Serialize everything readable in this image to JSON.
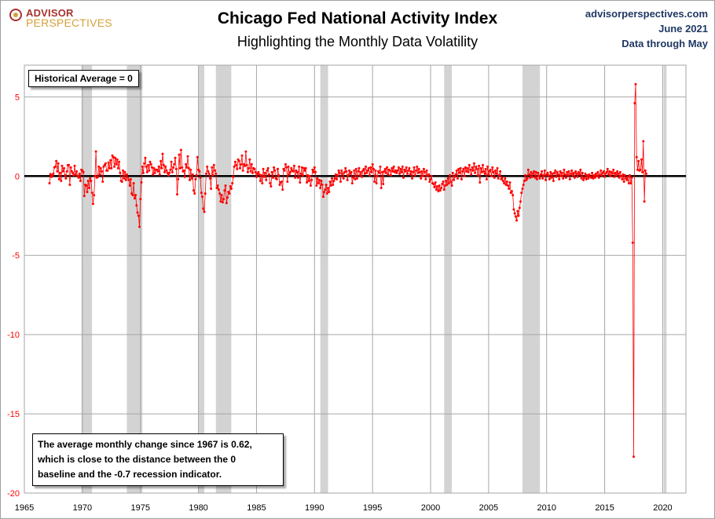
{
  "header": {
    "title": "Chicago Fed National Activity Index",
    "subtitle": "Highlighting the Monthly Data Volatility",
    "logo_line1": "ADVISOR",
    "logo_line2": "PERSPECTIVES",
    "source_site": "advisorperspectives.com",
    "source_date": "June 2021",
    "source_through": "Data through May"
  },
  "annotations": {
    "historical_average": "Historical Average = 0",
    "note_lines": [
      "The average monthly change since 1967  is 0.62,",
      "which is close to the distance between the 0",
      "baseline and the -0.7 recession indicator."
    ]
  },
  "colors": {
    "series": "#ff0000",
    "recession": "#d3d3d3",
    "grid": "#a6a6a6",
    "zero_line": "#000000",
    "y_tick_labels": "#ff0000",
    "x_tick_labels": "#000000"
  },
  "chart_data": {
    "type": "line",
    "title": "Chicago Fed National Activity Index",
    "subtitle": "Highlighting the Monthly Data Volatility",
    "xlabel": "",
    "ylabel": "",
    "xlim": [
      1965,
      2022
    ],
    "ylim": [
      -20,
      7
    ],
    "x_ticks": [
      1965,
      1970,
      1975,
      1980,
      1985,
      1990,
      1995,
      2000,
      2005,
      2010,
      2015,
      2020
    ],
    "y_ticks": [
      -20,
      -15,
      -10,
      -5,
      0,
      5
    ],
    "grid": true,
    "baseline": 0,
    "recessions": [
      [
        1969.92,
        1970.83
      ],
      [
        1973.83,
        1975.17
      ],
      [
        1980.0,
        1980.5
      ],
      [
        1981.5,
        1982.83
      ],
      [
        1990.5,
        1991.17
      ],
      [
        2001.17,
        2001.83
      ],
      [
        2007.92,
        2009.42
      ],
      [
        2020.08,
        2020.33
      ]
    ],
    "series": [
      {
        "monthly_from": "1967-03",
        "values": [
          -0.45,
          0.13,
          -0.05,
          0.05,
          0.15,
          0.55,
          0.6,
          0.95,
          0.3,
          0.8,
          -0.2,
          0.2,
          -0.3,
          0.65,
          0.3,
          0.5,
          0.05,
          -0.15,
          0.3,
          0.7,
          0.7,
          -0.55,
          0.55,
          0.3,
          0.2,
          0.05,
          0.65,
          0.1,
          0.3,
          0.0,
          -0.1,
          0.15,
          -0.3,
          0.4,
          0.35,
          0.25,
          -1.25,
          -0.55,
          -0.6,
          -1.0,
          -0.3,
          -0.75,
          -0.15,
          -0.3,
          -1.05,
          -1.75,
          -1.2,
          0.0,
          1.55,
          -0.1,
          -0.05,
          0.6,
          0.1,
          0.5,
          0.3,
          -0.35,
          0.6,
          0.7,
          0.8,
          0.35,
          0.35,
          0.85,
          0.5,
          1.0,
          0.5,
          1.3,
          1.2,
          0.6,
          1.15,
          0.75,
          1.05,
          0.5,
          0.9,
          0.2,
          -0.3,
          -0.35,
          0.35,
          -0.15,
          0.25,
          -0.25,
          0.1,
          -0.1,
          -0.25,
          -0.6,
          -0.2,
          -1.1,
          -1.2,
          -0.45,
          -1.4,
          -1.2,
          -1.85,
          -2.3,
          -2.5,
          -3.2,
          -1.45,
          -0.4,
          0.6,
          0.2,
          0.8,
          1.15,
          0.6,
          0.25,
          0.7,
          0.35,
          0.9,
          0.75,
          0.55,
          0.1,
          0.5,
          0.2,
          0.4,
          0.4,
          0.3,
          0.6,
          0.1,
          0.95,
          0.5,
          1.4,
          0.7,
          0.25,
          0.6,
          0.35,
          0.2,
          0.05,
          0.2,
          0.4,
          0.9,
          0.25,
          0.55,
          0.75,
          1.15,
          0.45,
          -1.15,
          -0.2,
          1.35,
          0.5,
          1.65,
          0.55,
          0.3,
          0.35,
          -0.05,
          0.75,
          0.55,
          1.25,
          0.5,
          -0.25,
          0.4,
          -0.15,
          0.1,
          -0.9,
          -1.1,
          -0.2,
          0.05,
          1.2,
          0.4,
          0.3,
          -0.1,
          -1.05,
          -1.3,
          -2.05,
          -2.25,
          -1.1,
          0.15,
          0.6,
          0.3,
          0.15,
          -0.15,
          -0.8,
          0.55,
          0.05,
          0.7,
          0.35,
          0.15,
          -0.75,
          -0.6,
          -0.85,
          -1.1,
          -1.6,
          -1.2,
          -1.65,
          -1.45,
          -0.9,
          -0.6,
          -1.7,
          -1.35,
          -1.0,
          -1.1,
          -0.65,
          -0.8,
          -0.45,
          -0.05,
          0.6,
          0.9,
          0.7,
          0.45,
          1.05,
          0.95,
          0.5,
          0.75,
          1.3,
          0.35,
          0.75,
          0.65,
          1.55,
          0.7,
          0.25,
          0.5,
          1.05,
          0.3,
          0.75,
          0.2,
          0.5,
          0.45,
          0.25,
          -0.05,
          0.15,
          0.25,
          0.1,
          -0.3,
          0.05,
          -0.45,
          0.45,
          -0.05,
          0.2,
          -0.25,
          0.35,
          0.5,
          0.1,
          -0.45,
          -0.65,
          0.25,
          -0.1,
          0.55,
          0.35,
          -0.15,
          -0.2,
          0.45,
          0.05,
          -0.55,
          -0.4,
          -0.35,
          -0.85,
          0.45,
          0.35,
          0.75,
          0.55,
          -0.35,
          0.6,
          0.1,
          0.25,
          0.5,
          0.35,
          0.3,
          0.65,
          -0.1,
          0.35,
          0.25,
          -0.1,
          0.6,
          -0.4,
          0.15,
          0.55,
          0.05,
          0.5,
          0.35,
          0.5,
          -0.4,
          0.05,
          -0.3,
          0.0,
          -0.6,
          -0.25,
          0.4,
          0.25,
          0.55,
          0.25,
          -0.6,
          -0.15,
          -0.45,
          -0.25,
          -0.75,
          -0.3,
          -0.55,
          -1.3,
          -1.0,
          -0.85,
          -0.55,
          -1.1,
          -0.75,
          -1.0,
          -0.35,
          -0.6,
          -0.15,
          -0.55,
          -0.3,
          -0.15,
          0.1,
          -0.2,
          0.05,
          0.35,
          0.2,
          -0.35,
          0.35,
          0.15,
          -0.15,
          0.25,
          0.5,
          0.3,
          -0.25,
          0.05,
          0.35,
          0.15,
          0.25,
          -0.45,
          -0.1,
          0.35,
          -0.2,
          0.45,
          -0.15,
          0.3,
          0.5,
          0.05,
          0.25,
          -0.05,
          0.35,
          0.45,
          0.15,
          0.6,
          0.2,
          0.35,
          0.5,
          0.05,
          0.55,
          0.25,
          0.75,
          0.45,
          -0.35,
          0.35,
          -0.45,
          0.0,
          0.3,
          0.2,
          0.6,
          -0.75,
          0.25,
          -0.5,
          0.3,
          0.45,
          0.2,
          0.55,
          0.1,
          0.4,
          0.35,
          0.05,
          0.5,
          0.3,
          0.6,
          0.25,
          0.35,
          0.2,
          0.35,
          0.55,
          0.15,
          0.45,
          0.25,
          0.6,
          -0.1,
          0.4,
          0.3,
          0.55,
          0.15,
          0.35,
          0.5,
          0.1,
          0.3,
          -0.15,
          0.25,
          0.55,
          0.05,
          0.35,
          0.6,
          0.2,
          0.45,
          0.25,
          -0.15,
          0.3,
          0.0,
          0.45,
          0.25,
          -0.2,
          0.35,
          0.05,
          0.1,
          -0.35,
          -0.2,
          0.0,
          -0.45,
          -0.5,
          -0.7,
          -0.4,
          -0.85,
          -0.65,
          -0.95,
          -0.6,
          -0.9,
          -0.75,
          -0.5,
          -0.35,
          -0.85,
          -0.6,
          -0.3,
          -0.55,
          -0.15,
          -0.45,
          0.05,
          -0.35,
          -0.6,
          0.2,
          -0.25,
          -0.05,
          0.1,
          0.35,
          -0.15,
          0.45,
          0.2,
          0.5,
          -0.2,
          0.3,
          0.45,
          0.0,
          0.55,
          0.3,
          0.5,
          0.25,
          0.7,
          0.4,
          0.1,
          0.55,
          0.35,
          0.8,
          0.2,
          0.6,
          0.45,
          0.05,
          0.65,
          -0.4,
          0.5,
          0.25,
          0.7,
          0.3,
          0.15,
          0.45,
          -0.2,
          0.6,
          0.1,
          0.3,
          0.4,
          0.0,
          0.55,
          0.25,
          -0.1,
          0.35,
          0.15,
          0.5,
          -0.15,
          0.05,
          0.3,
          -0.2,
          -0.1,
          -0.3,
          -0.45,
          -0.15,
          -0.55,
          -0.35,
          -0.6,
          -0.8,
          -0.4,
          -1.05,
          -0.95,
          -1.2,
          -2.1,
          -2.35,
          -2.55,
          -2.8,
          -2.2,
          -2.5,
          -2.0,
          -1.6,
          -1.05,
          -0.8,
          -0.55,
          -0.3,
          0.05,
          -0.25,
          -0.15,
          0.4,
          0.1,
          -0.1,
          0.25,
          -0.05,
          0.15,
          0.3,
          -0.1,
          0.25,
          -0.2,
          0.2,
          0.0,
          -0.15,
          0.1,
          0.3,
          -0.15,
          0.05,
          0.35,
          -0.25,
          0.1,
          0.2,
          0.05,
          -0.2,
          0.25,
          -0.1,
          0.15,
          -0.3,
          0.2,
          0.35,
          -0.05,
          0.25,
          0.1,
          -0.2,
          0.3,
          0.0,
          0.2,
          -0.15,
          0.4,
          0.1,
          -0.1,
          0.25,
          0.05,
          0.3,
          -0.2,
          0.15,
          0.35,
          0.05,
          0.2,
          -0.1,
          0.3,
          0.15,
          -0.05,
          0.25,
          0.1,
          0.4,
          -0.15,
          0.2,
          -0.25,
          -0.1,
          0.15,
          -0.2,
          0.05,
          -0.15,
          0.1,
          -0.05,
          -0.1,
          0.2,
          -0.15,
          0.05,
          -0.1,
          0.15,
          0.0,
          0.25,
          -0.1,
          0.1,
          0.35,
          0.05,
          0.2,
          0.3,
          -0.05,
          0.15,
          0.25,
          0.45,
          0.1,
          0.3,
          0.0,
          0.25,
          0.15,
          0.4,
          -0.05,
          0.2,
          0.05,
          0.3,
          0.15,
          -0.1,
          0.25,
          0.0,
          -0.2,
          0.1,
          -0.35,
          0.05,
          -0.15,
          -0.25,
          -0.05,
          -0.45,
          0.05,
          -0.45,
          -0.1,
          -4.2,
          -17.7,
          4.6,
          5.8,
          1.2,
          0.4,
          0.95,
          0.35,
          0.4,
          1.05,
          0.25,
          2.2,
          -1.6,
          0.35,
          0.15
        ]
      }
    ]
  }
}
